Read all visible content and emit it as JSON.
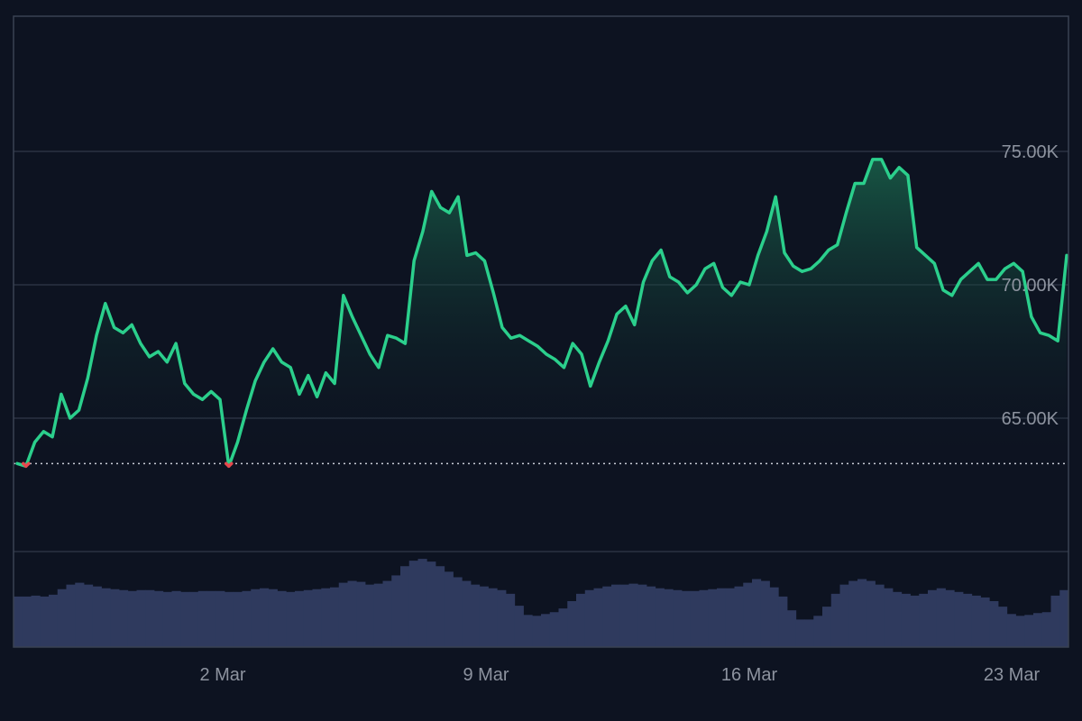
{
  "colors": {
    "background": "#0d1321",
    "grid": "#2b3342",
    "frame": "#3a4252",
    "line_up": "#2bcf8c",
    "line_down": "#e5484d",
    "area_top": "#1a6b4f",
    "baseline": "#c9cdd6",
    "volume": "#2f3a5e",
    "label": "#8d939f"
  },
  "chart_data": {
    "type": "area",
    "title": "",
    "xlabel": "",
    "ylabel": "",
    "x_ticks": [
      "2 Mar",
      "9 Mar",
      "16 Mar",
      "23 Mar"
    ],
    "y_ticks": [
      "65.00K",
      "70.00K",
      "75.00K"
    ],
    "ylim": [
      60000,
      80000
    ],
    "baseline_value": 63300,
    "series": [
      {
        "values": [
          63300,
          63200,
          64100,
          64500,
          64300,
          65900,
          65000,
          65300,
          66500,
          68100,
          69300,
          68400,
          68200,
          68500,
          67800,
          67300,
          67500,
          67100,
          67800,
          66300,
          65900,
          65700,
          66000,
          65700,
          63200,
          64100,
          65300,
          66400,
          67100,
          67600,
          67100,
          66900,
          65900,
          66600,
          65800,
          66700,
          66300,
          69600,
          68800,
          68100,
          67400,
          66900,
          68100,
          68000,
          67800,
          70900,
          72000,
          73500,
          72900,
          72700,
          73300,
          71100,
          71200,
          70900,
          69700,
          68400,
          68000,
          68100,
          67900,
          67700,
          67400,
          67200,
          66900,
          67800,
          67400,
          66200,
          67100,
          67900,
          68900,
          69200,
          68500,
          70100,
          70900,
          71300,
          70300,
          70100,
          69700,
          70000,
          70600,
          70800,
          69900,
          69600,
          70100,
          70000,
          71100,
          72000,
          73300,
          71200,
          70700,
          70500,
          70600,
          70900,
          71300,
          71500,
          72700,
          73800,
          73800,
          74700,
          74700,
          74000,
          74400,
          74100,
          71400,
          71100,
          70800,
          69800,
          69600,
          70200,
          70500,
          70800,
          70200,
          70200,
          70600,
          70800,
          70500,
          68800,
          68200,
          68100,
          67900,
          71100
        ]
      }
    ],
    "volume": [
      55,
      55,
      56,
      55,
      57,
      63,
      68,
      70,
      68,
      66,
      64,
      63,
      62,
      61,
      62,
      62,
      61,
      60,
      61,
      60,
      60,
      61,
      61,
      61,
      60,
      60,
      61,
      63,
      64,
      63,
      61,
      60,
      61,
      62,
      63,
      64,
      65,
      70,
      72,
      71,
      68,
      69,
      72,
      78,
      88,
      94,
      96,
      93,
      88,
      82,
      76,
      72,
      68,
      66,
      64,
      62,
      58,
      45,
      35,
      34,
      36,
      38,
      42,
      50,
      58,
      62,
      64,
      66,
      68,
      68,
      69,
      68,
      66,
      64,
      63,
      62,
      61,
      61,
      62,
      63,
      64,
      64,
      66,
      70,
      74,
      72,
      65,
      55,
      40,
      30,
      30,
      34,
      44,
      58,
      68,
      72,
      74,
      72,
      68,
      64,
      60,
      58,
      56,
      58,
      62,
      64,
      62,
      60,
      58,
      56,
      54,
      50,
      44,
      36,
      34,
      35,
      37,
      38,
      56,
      62
    ],
    "volume_max": 100,
    "grid": true
  }
}
